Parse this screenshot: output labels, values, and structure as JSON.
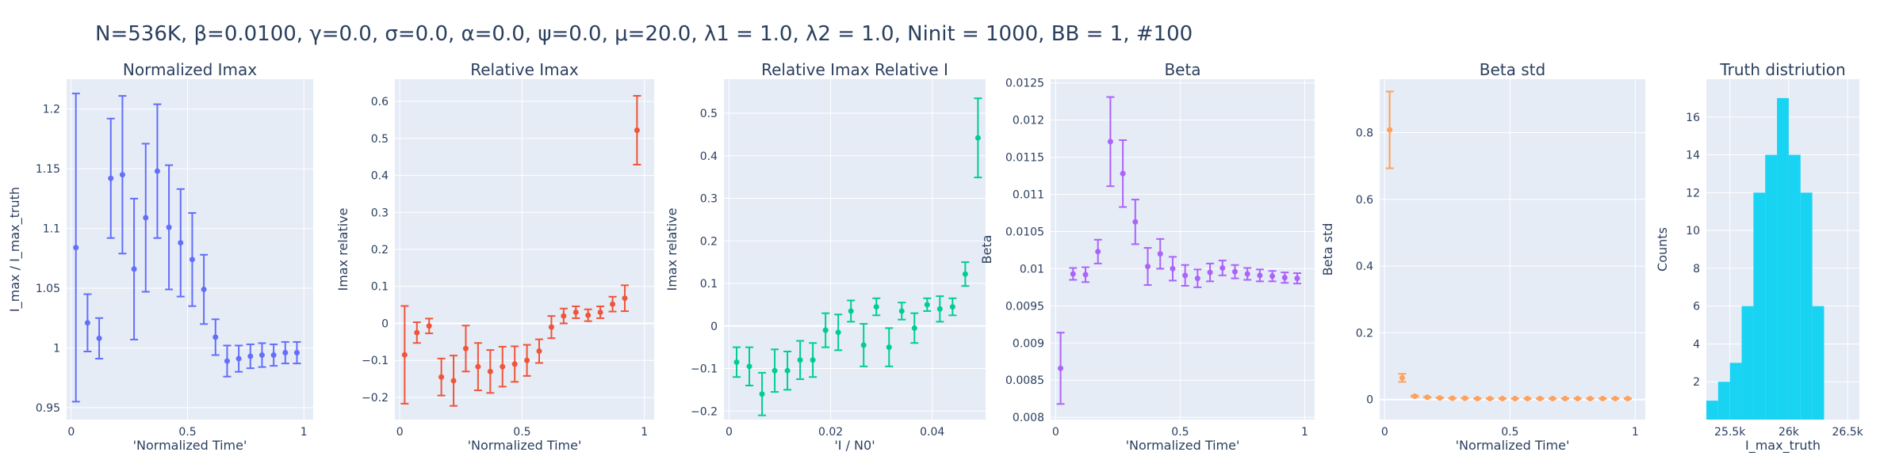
{
  "figure": {
    "title": "N=536K, β=0.0100, γ=0.0, σ=0.0,  α=0.0, ψ=0.0, μ=20.0, λ1 = 1.0, λ2 = 1.0, Ninit = 1000, BB = 1, #100"
  },
  "colors": {
    "plot_bg": "#e5ecf6",
    "grid": "#ffffff",
    "text": "#2a3f5f",
    "blue": "#636efa",
    "red": "#ef553b",
    "green": "#00cc96",
    "purple": "#ab63fa",
    "orange": "#ffa15a",
    "cyan": "#19d3f3"
  },
  "chart_data": [
    {
      "type": "scatter",
      "title": "Normalized Imax",
      "xlabel": "'Normalized Time'",
      "ylabel": "I_max / I_max_truth",
      "xlim": [
        -0.02,
        1.04
      ],
      "ylim": [
        0.94,
        1.225
      ],
      "xticks": [
        0,
        0.5,
        1
      ],
      "xticklabels": [
        "0",
        "0.5",
        "1"
      ],
      "yticks": [
        0.95,
        1,
        1.05,
        1.1,
        1.15,
        1.2
      ],
      "yticklabels": [
        "0.95",
        "1",
        "1.05",
        "1.1",
        "1.15",
        "1.2"
      ],
      "color": "blue",
      "x": [
        0.02,
        0.07,
        0.12,
        0.17,
        0.22,
        0.27,
        0.32,
        0.37,
        0.42,
        0.47,
        0.52,
        0.57,
        0.62,
        0.67,
        0.72,
        0.77,
        0.82,
        0.87,
        0.92,
        0.97
      ],
      "y": [
        1.084,
        1.021,
        1.008,
        1.142,
        1.145,
        1.066,
        1.109,
        1.148,
        1.101,
        1.088,
        1.074,
        1.049,
        1.009,
        0.989,
        0.991,
        0.993,
        0.994,
        0.994,
        0.996,
        0.996
      ],
      "err": [
        0.129,
        0.024,
        0.017,
        0.05,
        0.066,
        0.059,
        0.062,
        0.056,
        0.052,
        0.045,
        0.039,
        0.029,
        0.015,
        0.013,
        0.011,
        0.01,
        0.01,
        0.009,
        0.009,
        0.009
      ]
    },
    {
      "type": "scatter",
      "title": "Relative Imax",
      "xlabel": "'Normalized Time'",
      "ylabel": "Imax relative",
      "xlim": [
        -0.02,
        1.04
      ],
      "ylim": [
        -0.26,
        0.66
      ],
      "xticks": [
        0,
        0.5,
        1
      ],
      "xticklabels": [
        "0",
        "0.5",
        "1"
      ],
      "yticks": [
        -0.2,
        -0.1,
        0,
        0.1,
        0.2,
        0.3,
        0.4,
        0.5,
        0.6
      ],
      "yticklabels": [
        "−0.2",
        "−0.1",
        "0",
        "0.1",
        "0.2",
        "0.3",
        "0.4",
        "0.5",
        "0.6"
      ],
      "color": "red",
      "x": [
        0.02,
        0.07,
        0.12,
        0.17,
        0.22,
        0.27,
        0.32,
        0.37,
        0.42,
        0.47,
        0.52,
        0.57,
        0.62,
        0.67,
        0.72,
        0.77,
        0.82,
        0.87,
        0.92,
        0.97
      ],
      "y": [
        -0.085,
        -0.025,
        -0.007,
        -0.145,
        -0.155,
        -0.068,
        -0.117,
        -0.13,
        -0.117,
        -0.11,
        -0.1,
        -0.075,
        -0.01,
        0.02,
        0.03,
        0.022,
        0.03,
        0.052,
        0.068,
        0.522
      ],
      "err": [
        0.132,
        0.028,
        0.02,
        0.05,
        0.068,
        0.062,
        0.064,
        0.058,
        0.054,
        0.048,
        0.042,
        0.032,
        0.03,
        0.02,
        0.016,
        0.016,
        0.016,
        0.02,
        0.035,
        0.093
      ]
    },
    {
      "type": "scatter",
      "title": "Relative Imax Relative I",
      "xlabel": "'I / N0'",
      "ylabel": "Imax relative",
      "xlim": [
        -0.001,
        0.0505
      ],
      "ylim": [
        -0.22,
        0.58
      ],
      "xticks": [
        0,
        0.02,
        0.04
      ],
      "xticklabels": [
        "0",
        "0.02",
        "0.04"
      ],
      "yticks": [
        -0.2,
        -0.1,
        0,
        0.1,
        0.2,
        0.3,
        0.4,
        0.5
      ],
      "yticklabels": [
        "−0.2",
        "−0.1",
        "0",
        "0.1",
        "0.2",
        "0.3",
        "0.4",
        "0.5"
      ],
      "color": "green",
      "x": [
        0.0015,
        0.004,
        0.0065,
        0.009,
        0.0115,
        0.014,
        0.0165,
        0.019,
        0.0215,
        0.024,
        0.0265,
        0.029,
        0.0315,
        0.034,
        0.0365,
        0.039,
        0.0415,
        0.044,
        0.0465,
        0.049
      ],
      "y": [
        -0.085,
        -0.095,
        -0.16,
        -0.105,
        -0.105,
        -0.08,
        -0.08,
        -0.01,
        -0.015,
        0.035,
        -0.045,
        0.045,
        -0.05,
        0.035,
        -0.005,
        0.05,
        0.04,
        0.045,
        0.122,
        0.442
      ],
      "err": [
        0.035,
        0.045,
        0.05,
        0.05,
        0.045,
        0.045,
        0.04,
        0.04,
        0.042,
        0.025,
        0.05,
        0.02,
        0.045,
        0.02,
        0.035,
        0.015,
        0.03,
        0.02,
        0.028,
        0.093
      ]
    },
    {
      "type": "scatter",
      "title": "Beta",
      "xlabel": "'Normalized Time'",
      "ylabel": "Beta",
      "xlim": [
        -0.02,
        1.04
      ],
      "ylim": [
        0.00797,
        0.01255
      ],
      "xticks": [
        0,
        0.5,
        1
      ],
      "xticklabels": [
        "0",
        "0.5",
        "1"
      ],
      "yticks": [
        0.008,
        0.0085,
        0.009,
        0.0095,
        0.01,
        0.0105,
        0.011,
        0.0115,
        0.012,
        0.0125
      ],
      "yticklabels": [
        "0.008",
        "0.0085",
        "0.009",
        "0.0095",
        "0.01",
        "0.0105",
        "0.011",
        "0.0115",
        "0.012",
        "0.0125"
      ],
      "color": "purple",
      "x": [
        0.02,
        0.07,
        0.12,
        0.17,
        0.22,
        0.27,
        0.32,
        0.37,
        0.42,
        0.47,
        0.52,
        0.57,
        0.62,
        0.67,
        0.72,
        0.77,
        0.82,
        0.87,
        0.92,
        0.97
      ],
      "y": [
        0.00866,
        0.00993,
        0.00992,
        0.01023,
        0.01171,
        0.01128,
        0.01063,
        0.01003,
        0.0102,
        0.01,
        0.00991,
        0.00987,
        0.00995,
        0.01001,
        0.00996,
        0.00993,
        0.00991,
        0.0099,
        0.00988,
        0.00987
      ],
      "err": [
        0.00048,
        8e-05,
        0.0001,
        0.00016,
        0.0006,
        0.00045,
        0.0003,
        0.00025,
        0.0002,
        0.00016,
        0.00014,
        0.00012,
        0.00012,
        0.0001,
        9e-05,
        8e-05,
        8e-05,
        7e-05,
        7e-05,
        7e-05
      ]
    },
    {
      "type": "scatter",
      "title": "Beta std",
      "xlabel": "'Normalized Time'",
      "ylabel": "Beta std",
      "xlim": [
        -0.02,
        1.04
      ],
      "ylim": [
        -0.06,
        0.96
      ],
      "xticks": [
        0,
        0.5,
        1
      ],
      "xticklabels": [
        "0",
        "0.5",
        "1"
      ],
      "yticks": [
        0,
        0.2,
        0.4,
        0.6,
        0.8
      ],
      "yticklabels": [
        "0",
        "0.2",
        "0.4",
        "0.6",
        "0.8"
      ],
      "color": "orange",
      "x": [
        0.02,
        0.07,
        0.12,
        0.17,
        0.22,
        0.27,
        0.32,
        0.37,
        0.42,
        0.47,
        0.52,
        0.57,
        0.62,
        0.67,
        0.72,
        0.77,
        0.82,
        0.87,
        0.92,
        0.97
      ],
      "y": [
        0.808,
        0.065,
        0.01,
        0.007,
        0.005,
        0.004,
        0.004,
        0.003,
        0.003,
        0.003,
        0.003,
        0.003,
        0.003,
        0.003,
        0.003,
        0.003,
        0.003,
        0.003,
        0.003,
        0.003
      ],
      "err": [
        0.115,
        0.012,
        0.002,
        0.001,
        0.001,
        0.001,
        0.001,
        0.001,
        0.001,
        0.001,
        0.001,
        0.001,
        0.001,
        0.001,
        0.001,
        0.001,
        0.001,
        0.001,
        0.001,
        0.001
      ]
    },
    {
      "type": "bar",
      "title": "Truth distriution",
      "xlabel": "I_max_truth",
      "ylabel": "Counts",
      "xlim": [
        25300,
        26600
      ],
      "ylim": [
        0,
        18
      ],
      "xticks": [
        25500,
        26000,
        26500
      ],
      "xticklabels": [
        "25.5k",
        "26k",
        "26.5k"
      ],
      "yticks": [
        2,
        4,
        6,
        8,
        10,
        12,
        14,
        16
      ],
      "yticklabels": [
        "2",
        "4",
        "6",
        "8",
        "10",
        "12",
        "14",
        "16"
      ],
      "color": "cyan",
      "bin_starts": [
        25300,
        25400,
        25500,
        25600,
        25700,
        25800,
        25900,
        26000,
        26100,
        26200,
        26300,
        26400,
        26500
      ],
      "bin_width": 100,
      "values": [
        1,
        2,
        3,
        6,
        12,
        14,
        17,
        14,
        12,
        6,
        0,
        0,
        1
      ],
      "bar_width_bins": [
        1,
        1,
        1,
        1,
        1,
        1,
        1,
        1,
        1,
        1,
        1,
        2,
        0
      ]
    }
  ]
}
